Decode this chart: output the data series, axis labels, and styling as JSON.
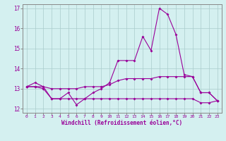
{
  "xlabel": "Windchill (Refroidissement éolien,°C)",
  "x": [
    0,
    1,
    2,
    3,
    4,
    5,
    6,
    7,
    8,
    9,
    10,
    11,
    12,
    13,
    14,
    15,
    16,
    17,
    18,
    19,
    20,
    21,
    22,
    23
  ],
  "line1": [
    13.1,
    13.3,
    13.1,
    12.5,
    12.5,
    12.8,
    12.2,
    12.5,
    12.8,
    13.0,
    13.3,
    14.4,
    14.4,
    14.4,
    15.6,
    14.9,
    17.0,
    16.7,
    15.7,
    13.7,
    13.6,
    12.8,
    12.8,
    12.4
  ],
  "line2": [
    13.1,
    13.1,
    13.1,
    13.0,
    13.0,
    13.0,
    13.0,
    13.1,
    13.1,
    13.1,
    13.2,
    13.4,
    13.5,
    13.5,
    13.5,
    13.5,
    13.6,
    13.6,
    13.6,
    13.6,
    13.6,
    12.8,
    12.8,
    12.4
  ],
  "line3": [
    13.1,
    13.1,
    13.0,
    12.5,
    12.5,
    12.5,
    12.5,
    12.5,
    12.5,
    12.5,
    12.5,
    12.5,
    12.5,
    12.5,
    12.5,
    12.5,
    12.5,
    12.5,
    12.5,
    12.5,
    12.5,
    12.3,
    12.3,
    12.4
  ],
  "line_color": "#990099",
  "bg_color": "#d4f0f0",
  "grid_color": "#aacccc",
  "spine_color": "#888888",
  "ylim": [
    11.8,
    17.2
  ],
  "yticks": [
    12,
    13,
    14,
    15,
    16,
    17
  ],
  "xlim": [
    -0.5,
    23.5
  ],
  "xticks": [
    0,
    1,
    2,
    3,
    4,
    5,
    6,
    7,
    8,
    9,
    10,
    11,
    12,
    13,
    14,
    15,
    16,
    17,
    18,
    19,
    20,
    21,
    22,
    23
  ]
}
